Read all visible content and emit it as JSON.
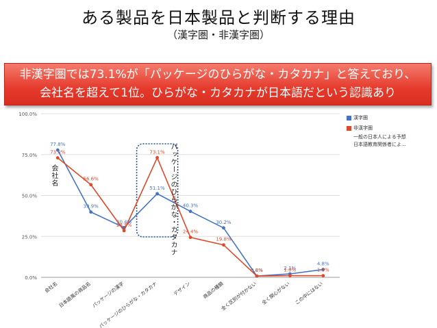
{
  "title": "ある製品を日本製品と判断する理由",
  "subtitle": "（漢字圏・非漢字圏）",
  "banner": {
    "line1": "非漢字圏では73.1%が「パッケージのひらがな・カタカナ」と答えており、",
    "line2": "会社名を超えて1位。ひらがな・カタカナが日本語だという認識あり"
  },
  "annotations": {
    "company": "会社名",
    "hiragana": "パッケージのひらがな・カタカナ"
  },
  "colors": {
    "kanji": "#4472c4",
    "nonkanji": "#db4a2b",
    "highlight": "#1f4e9c"
  },
  "chart_data": {
    "type": "line",
    "categories": [
      "会社名",
      "日本語風の商品名",
      "パッケージの漢字",
      "パッケージのひらがな・カタカナ",
      "デザイン",
      "商品の種類",
      "全く区別が付かない",
      "全く関心がない",
      "この中にはない"
    ],
    "series": [
      {
        "name": "漢字圏",
        "values": [
          77.8,
          39.9,
          30.4,
          51.1,
          40.3,
          30.2,
          0.8,
          2.1,
          4.8
        ],
        "labels": [
          "77.8%",
          "39.9%",
          "30.4%",
          "51.1%",
          "40.3%",
          "30.2%",
          "0.8%",
          "2.1%",
          "4.8%"
        ]
      },
      {
        "name": "非漢字圏",
        "values": [
          73.0,
          56.6,
          28.5,
          73.1,
          24.4,
          19.8,
          0.8,
          1.0,
          1.0
        ],
        "labels": [
          "73.0%",
          "56.6%",
          "28.5%",
          "73.1%",
          "24.4%",
          "19.8%",
          "0.8%",
          "1.0%",
          "1.0%"
        ]
      }
    ],
    "legend_extra": [
      "一般の日本人による予想",
      "日本語教育関係者によ..."
    ],
    "yticks": [
      "0.0%",
      "25.0%",
      "50.0%",
      "75.0%",
      "100.0%"
    ],
    "ylim": [
      0,
      100
    ],
    "legend_position": "top-right",
    "grid": true
  }
}
